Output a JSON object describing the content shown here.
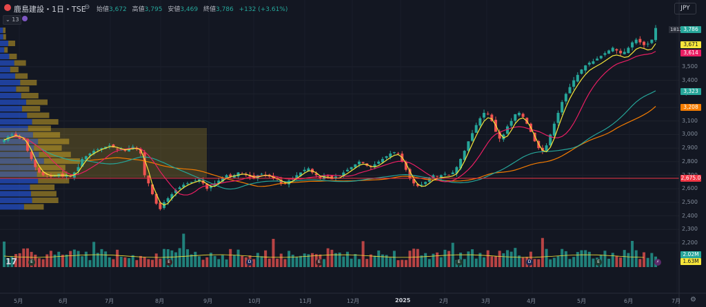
{
  "header": {
    "symbol": "鹿島建設・1日・TSE",
    "open_label": "始値",
    "open": "3,672",
    "high_label": "高値",
    "high": "3,795",
    "low_label": "安値",
    "low": "3,469",
    "close_label": "終値",
    "close": "3,786",
    "change": "+132 (+3.61%)",
    "currency": "JPY",
    "indicator_count": "13"
  },
  "price_labels": [
    "3,500",
    "3,400",
    "3,300",
    "3,200",
    "3,100",
    "3,000",
    "2,900",
    "2,800",
    "2,700",
    "2,600",
    "2,500",
    "2,400",
    "2,300",
    "2,200"
  ],
  "tags": {
    "countdown": "1812",
    "last": "3,786",
    "ma_yellow": "3,671",
    "ma_pink": "3,614",
    "ma_teal": "3,323",
    "ma_orange": "3,208",
    "hline": "2,675.0",
    "vol": "2.02M",
    "vol_ma": "1.63M"
  },
  "time_labels": [
    "5月",
    "6月",
    "7月",
    "8月",
    "9月",
    "10月",
    "11月",
    "12月",
    "2025",
    "2月",
    "3月",
    "4月",
    "5月",
    "6月",
    "7月"
  ],
  "badges": [
    "E",
    "E",
    "D",
    "E",
    "E",
    "D",
    "E",
    "⚡"
  ],
  "colors": {
    "up": "#26a69a",
    "down": "#ef5350",
    "bg": "#131722"
  },
  "chart_data": {
    "type": "candlestick",
    "ylim": [
      2100,
      3800
    ],
    "hline": 2675,
    "close_series": [
      2960,
      2985,
      3000,
      2990,
      2970,
      2960,
      2880,
      2820,
      2760,
      2720,
      2700,
      2705,
      2690,
      2700,
      2710,
      2690,
      2700,
      2690,
      2720,
      2760,
      2820,
      2840,
      2860,
      2880,
      2890,
      2900,
      2910,
      2920,
      2905,
      2890,
      2895,
      2880,
      2900,
      2910,
      2890,
      2860,
      2700,
      2640,
      2560,
      2490,
      2450,
      2500,
      2530,
      2560,
      2590,
      2610,
      2630,
      2640,
      2650,
      2660,
      2670,
      2640,
      2600,
      2620,
      2640,
      2660,
      2680,
      2700,
      2690,
      2700,
      2720,
      2710,
      2700,
      2690,
      2680,
      2700,
      2710,
      2700,
      2690,
      2680,
      2670,
      2640,
      2640,
      2660,
      2680,
      2700,
      2720,
      2740,
      2750,
      2720,
      2700,
      2680,
      2700,
      2690,
      2670,
      2690,
      2700,
      2720,
      2740,
      2760,
      2780,
      2800,
      2790,
      2770,
      2760,
      2780,
      2800,
      2820,
      2840,
      2860,
      2870,
      2860,
      2800,
      2740,
      2680,
      2640,
      2620,
      2630,
      2650,
      2680,
      2700,
      2690,
      2700,
      2710,
      2700,
      2720,
      2760,
      2820,
      2880,
      2950,
      3010,
      3070,
      3120,
      3160,
      3150,
      3100,
      3020,
      2970,
      3000,
      3060,
      3100,
      3150,
      3160,
      3130,
      3080,
      3020,
      2950,
      2900,
      2880,
      2920,
      3000,
      3080,
      3160,
      3240,
      3300,
      3350,
      3400,
      3440,
      3480,
      3510,
      3530,
      3540,
      3560,
      3580,
      3600,
      3620,
      3640,
      3620,
      3600,
      3610,
      3640,
      3680,
      3700,
      3680,
      3660,
      3670,
      3700,
      3786
    ],
    "ma_yellow_end": 3671,
    "ma_pink_end": 3614,
    "ma_teal_end": 3323,
    "ma_orange_end": 3208
  }
}
